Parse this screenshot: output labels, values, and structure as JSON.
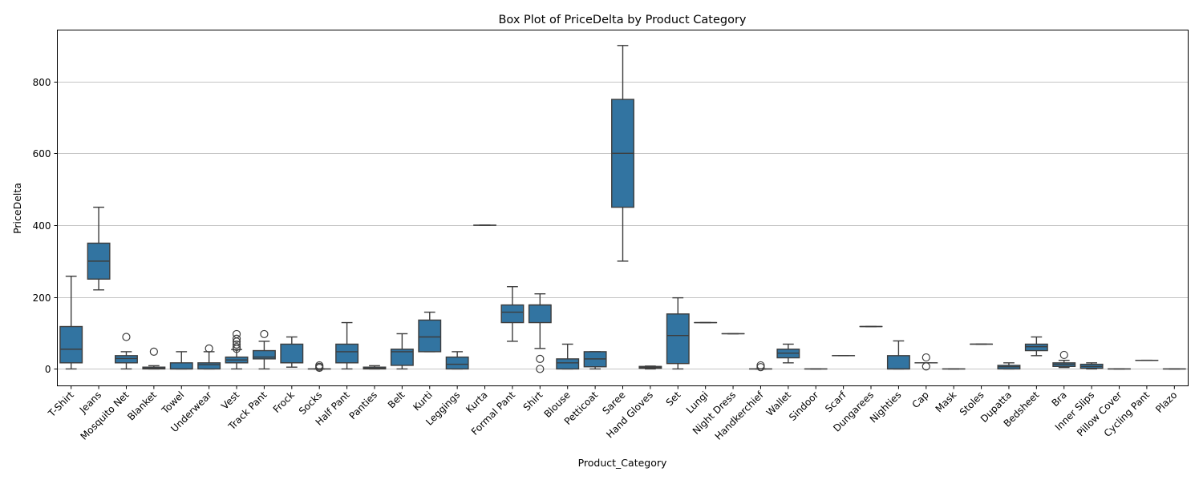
{
  "chart_data": {
    "type": "box",
    "title": "Box Plot of PriceDelta by Product Category",
    "xlabel": "Product_Category",
    "ylabel": "PriceDelta",
    "ylim": [
      -47,
      943
    ],
    "yticks": [
      0,
      200,
      400,
      600,
      800
    ],
    "grid": "y",
    "legend": "none",
    "colors": {
      "box_fill": "#3274a1",
      "line": "#3d3d3d",
      "grid": "#b0b0b0"
    },
    "boxes": [
      {
        "label": "T-Shirt",
        "whislo": 0,
        "q1": 17,
        "med": 55,
        "q3": 118,
        "whishi": 258,
        "fliers": []
      },
      {
        "label": "Jeans",
        "whislo": 220,
        "q1": 250,
        "med": 300,
        "q3": 350,
        "whishi": 450,
        "fliers": []
      },
      {
        "label": "Mosquito Net",
        "whislo": 0,
        "q1": 17,
        "med": 29,
        "q3": 37,
        "whishi": 48,
        "fliers": [
          89
        ]
      },
      {
        "label": "Blanket",
        "whislo": 0,
        "q1": 0,
        "med": 2,
        "q3": 5,
        "whishi": 9,
        "fliers": [
          48
        ]
      },
      {
        "label": "Towel",
        "whislo": 0,
        "q1": 0,
        "med": 0,
        "q3": 17,
        "whishi": 48,
        "fliers": []
      },
      {
        "label": "Underwear",
        "whislo": 0,
        "q1": 0,
        "med": 12,
        "q3": 17,
        "whishi": 48,
        "fliers": [
          57
        ]
      },
      {
        "label": "Vest",
        "whislo": 0,
        "q1": 17,
        "med": 25,
        "q3": 33,
        "whishi": 54,
        "fliers": [
          56,
          61,
          68,
          76,
          84,
          97
        ]
      },
      {
        "label": "Track Pant",
        "whislo": 0,
        "q1": 28,
        "med": 33,
        "q3": 51,
        "whishi": 77,
        "fliers": [
          97
        ]
      },
      {
        "label": "Frock",
        "whislo": 5,
        "q1": 17,
        "med": 17,
        "q3": 69,
        "whishi": 89,
        "fliers": []
      },
      {
        "label": "Socks",
        "whislo": 0,
        "q1": 0,
        "med": 0,
        "q3": 0,
        "whishi": 0,
        "fliers": [
          3,
          6,
          10
        ]
      },
      {
        "label": "Half Pant",
        "whislo": 0,
        "q1": 17,
        "med": 48,
        "q3": 69,
        "whishi": 129,
        "fliers": []
      },
      {
        "label": "Panties",
        "whislo": 0,
        "q1": 0,
        "med": 2,
        "q3": 5,
        "whishi": 9,
        "fliers": []
      },
      {
        "label": "Belt",
        "whislo": 0,
        "q1": 10,
        "med": 48,
        "q3": 55,
        "whishi": 98,
        "fliers": []
      },
      {
        "label": "Kurti",
        "whislo": 48,
        "q1": 48,
        "med": 89,
        "q3": 136,
        "whishi": 158,
        "fliers": []
      },
      {
        "label": "Leggings",
        "whislo": 0,
        "q1": 0,
        "med": 13,
        "q3": 33,
        "whishi": 48,
        "fliers": []
      },
      {
        "label": "Kurta",
        "whislo": 400,
        "q1": 400,
        "med": 400,
        "q3": 400,
        "whishi": 400,
        "fliers": []
      },
      {
        "label": "Formal Pant",
        "whislo": 77,
        "q1": 129,
        "med": 158,
        "q3": 178,
        "whishi": 229,
        "fliers": []
      },
      {
        "label": "Shirt",
        "whislo": 57,
        "q1": 129,
        "med": 178,
        "q3": 178,
        "whishi": 209,
        "fliers": [
          28,
          0
        ]
      },
      {
        "label": "Blouse",
        "whislo": 0,
        "q1": 0,
        "med": 17,
        "q3": 28,
        "whishi": 69,
        "fliers": []
      },
      {
        "label": "Petticoat",
        "whislo": 0,
        "q1": 6,
        "med": 28,
        "q3": 48,
        "whishi": 48,
        "fliers": []
      },
      {
        "label": "Saree",
        "whislo": 300,
        "q1": 450,
        "med": 600,
        "q3": 750,
        "whishi": 900,
        "fliers": []
      },
      {
        "label": "Hand Gloves",
        "whislo": 0,
        "q1": 2,
        "med": 4,
        "q3": 7,
        "whishi": 8,
        "fliers": []
      },
      {
        "label": "Set",
        "whislo": 0,
        "q1": 15,
        "med": 93,
        "q3": 153,
        "whishi": 198,
        "fliers": []
      },
      {
        "label": "Lungi",
        "whislo": 129,
        "q1": 129,
        "med": 129,
        "q3": 129,
        "whishi": 129,
        "fliers": []
      },
      {
        "label": "Night Dress",
        "whislo": 98,
        "q1": 98,
        "med": 98,
        "q3": 98,
        "whishi": 98,
        "fliers": []
      },
      {
        "label": "Handkerchief",
        "whislo": 0,
        "q1": 0,
        "med": 0,
        "q3": 0,
        "whishi": 0,
        "fliers": [
          5,
          10
        ]
      },
      {
        "label": "Wallet",
        "whislo": 17,
        "q1": 31,
        "med": 44,
        "q3": 55,
        "whishi": 69,
        "fliers": []
      },
      {
        "label": "Sindoor",
        "whislo": 0,
        "q1": 0,
        "med": 0,
        "q3": 0,
        "whishi": 0,
        "fliers": []
      },
      {
        "label": "Scarf",
        "whislo": 37,
        "q1": 37,
        "med": 37,
        "q3": 37,
        "whishi": 37,
        "fliers": []
      },
      {
        "label": "Dungarees",
        "whislo": 118,
        "q1": 118,
        "med": 118,
        "q3": 118,
        "whishi": 118,
        "fliers": []
      },
      {
        "label": "Nighties",
        "whislo": 0,
        "q1": 0,
        "med": 0,
        "q3": 37,
        "whishi": 78,
        "fliers": []
      },
      {
        "label": "Cap",
        "whislo": 17,
        "q1": 17,
        "med": 17,
        "q3": 17,
        "whishi": 17,
        "fliers": [
          32,
          7
        ]
      },
      {
        "label": "Mask",
        "whislo": 0,
        "q1": 0,
        "med": 0,
        "q3": 0,
        "whishi": 0,
        "fliers": []
      },
      {
        "label": "Stoles",
        "whislo": 69,
        "q1": 69,
        "med": 69,
        "q3": 69,
        "whishi": 69,
        "fliers": []
      },
      {
        "label": "Dupatta",
        "whislo": 0,
        "q1": 0,
        "med": 6,
        "q3": 10,
        "whishi": 17,
        "fliers": []
      },
      {
        "label": "Bedsheet",
        "whislo": 37,
        "q1": 51,
        "med": 62,
        "q3": 69,
        "whishi": 89,
        "fliers": []
      },
      {
        "label": "Bra",
        "whislo": 4,
        "q1": 7,
        "med": 13,
        "q3": 17,
        "whishi": 24,
        "fliers": [
          39
        ]
      },
      {
        "label": "Inner Slips",
        "whislo": 0,
        "q1": 2,
        "med": 7,
        "q3": 13,
        "whishi": 17,
        "fliers": []
      },
      {
        "label": "Pillow Cover",
        "whislo": 0,
        "q1": 0,
        "med": 0,
        "q3": 0,
        "whishi": 0,
        "fliers": []
      },
      {
        "label": "Cycling Pant",
        "whislo": 24,
        "q1": 24,
        "med": 24,
        "q3": 24,
        "whishi": 24,
        "fliers": []
      },
      {
        "label": "Plazo",
        "whislo": 0,
        "q1": 0,
        "med": 0,
        "q3": 0,
        "whishi": 0,
        "fliers": []
      }
    ]
  }
}
